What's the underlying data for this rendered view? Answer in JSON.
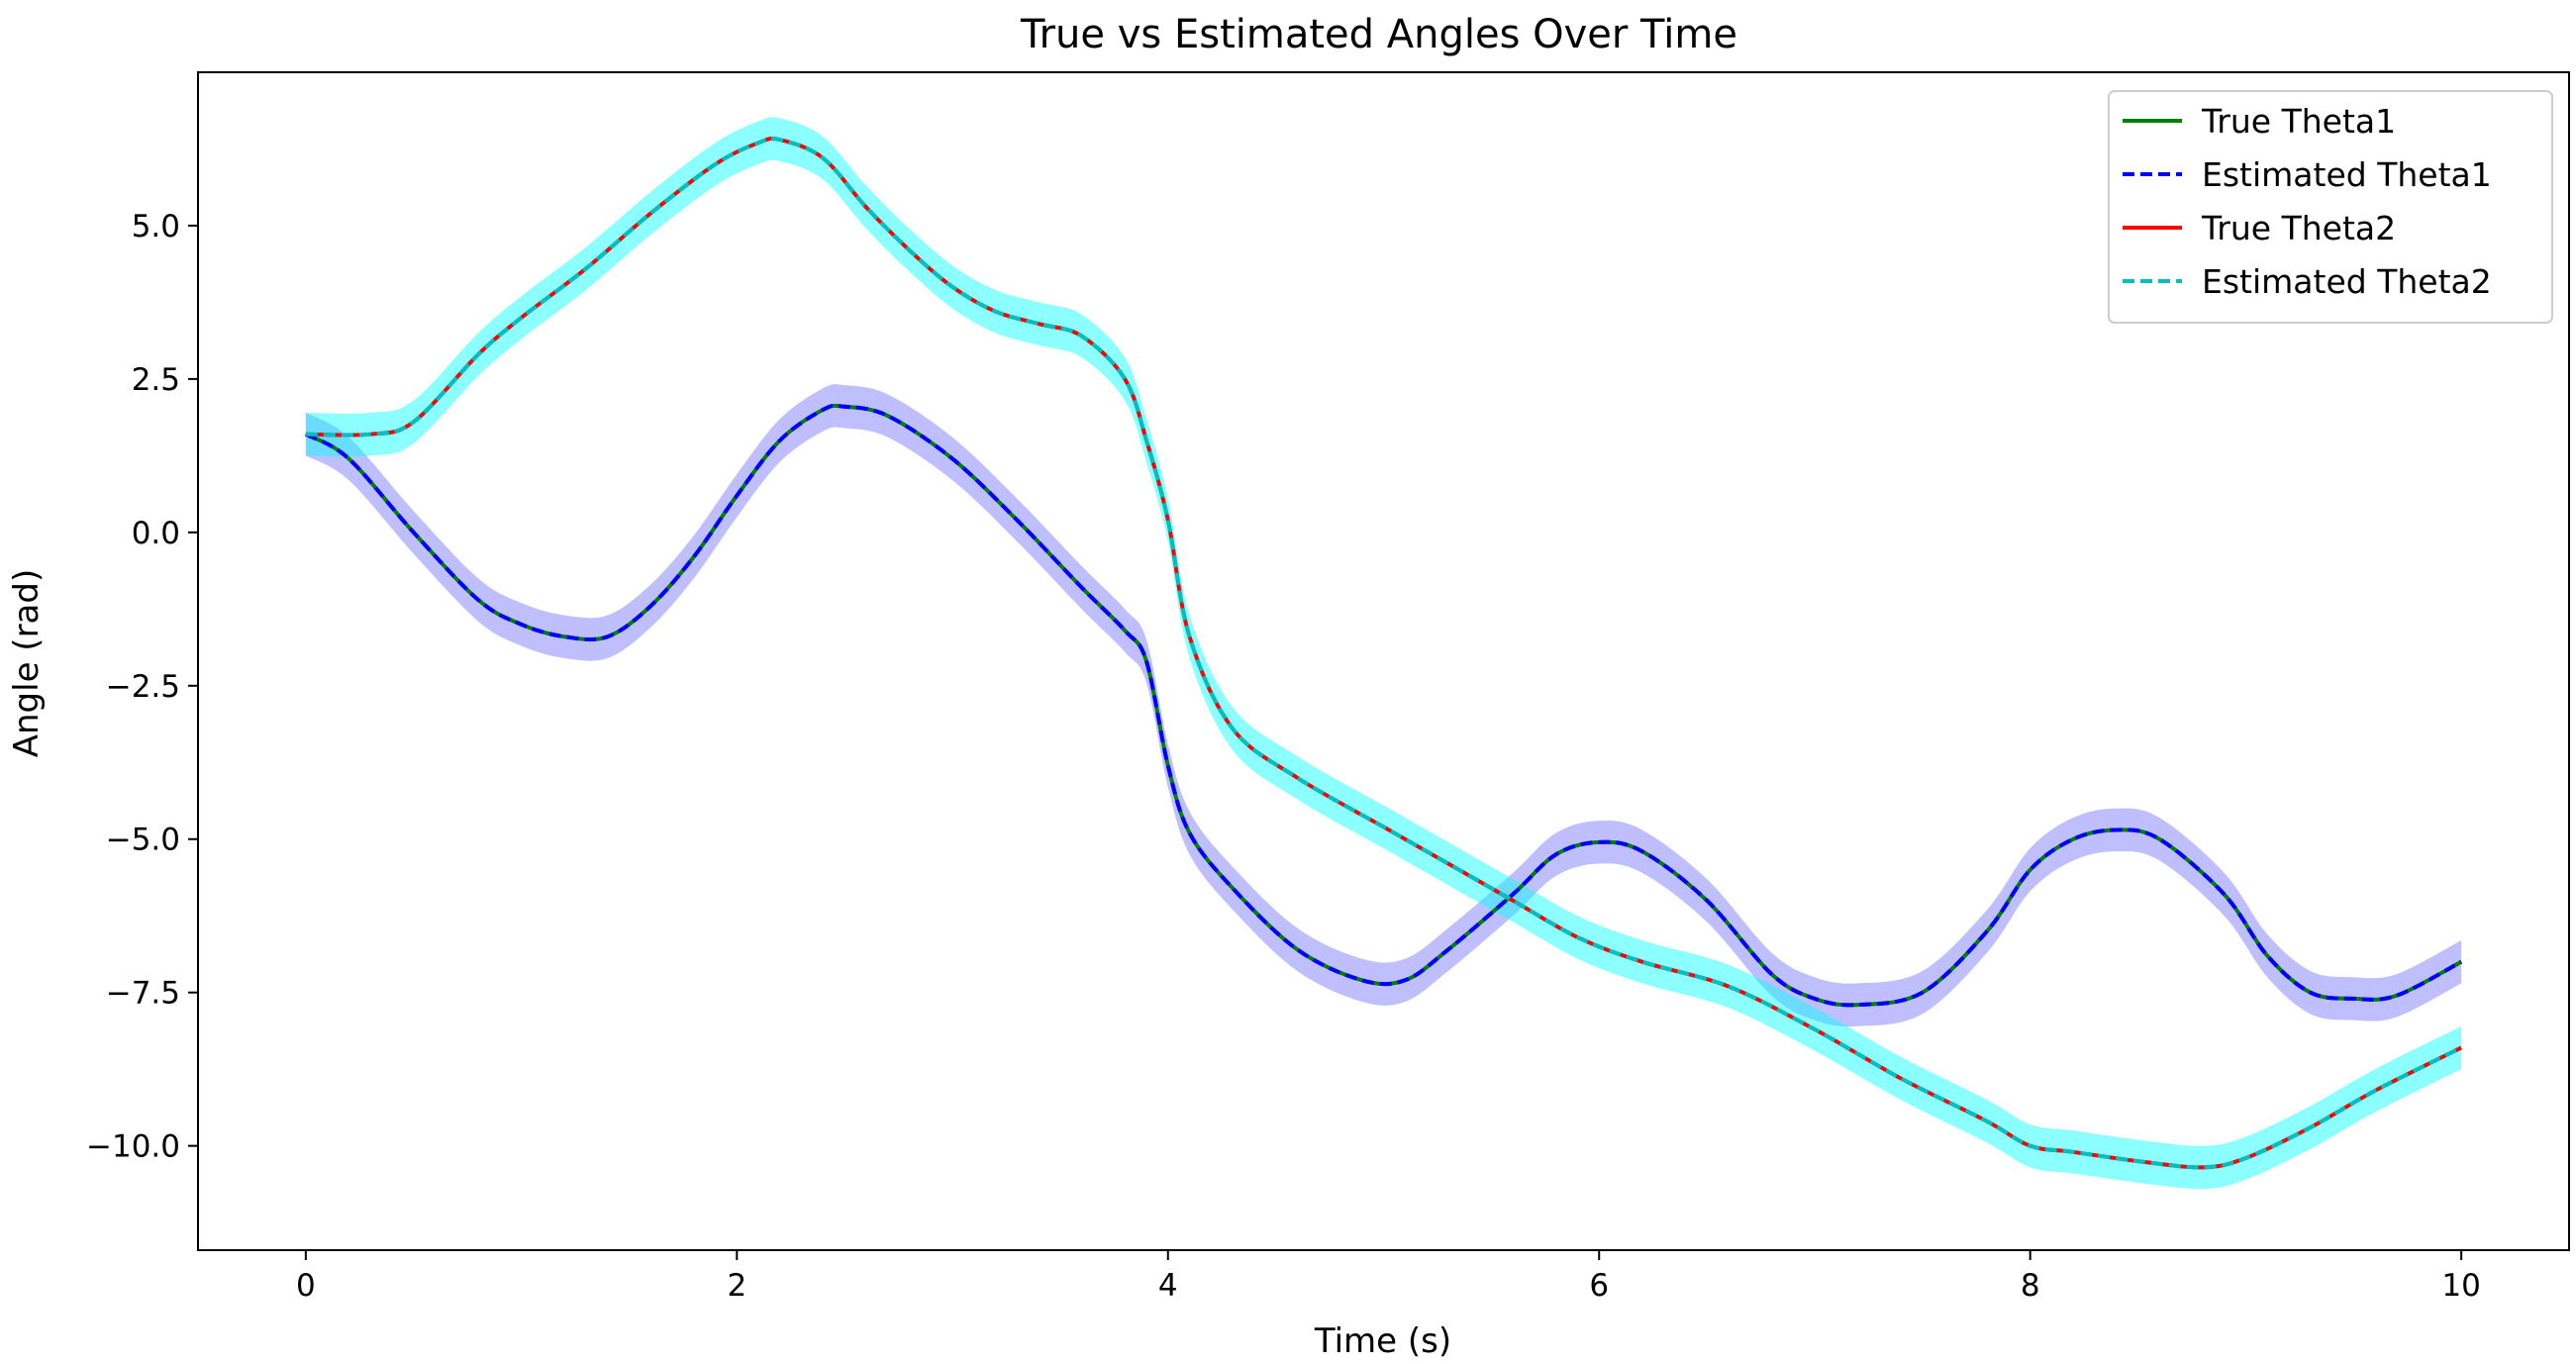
{
  "chart_data": {
    "type": "line",
    "title": "True vs Estimated Angles Over Time",
    "xlabel": "Time (s)",
    "ylabel": "Angle (rad)",
    "xlim": [
      -0.5,
      10.5
    ],
    "ylim": [
      -11.7,
      7.5
    ],
    "xticks": [
      0,
      2,
      4,
      6,
      8,
      10
    ],
    "xtick_labels": [
      "0",
      "2",
      "4",
      "6",
      "8",
      "10"
    ],
    "yticks": [
      5.0,
      2.5,
      0.0,
      -2.5,
      -5.0,
      -7.5,
      -10.0
    ],
    "ytick_labels": [
      "5.0",
      "2.5",
      "0.0",
      "−2.5",
      "−5.0",
      "−7.5",
      "−10.0"
    ],
    "grid": false,
    "legend_position": "top-right",
    "series": [
      {
        "name": "True Theta1",
        "color": "#008000",
        "style": "solid",
        "x": [
          0,
          0.2,
          0.5,
          0.8,
          1.0,
          1.2,
          1.4,
          1.6,
          1.8,
          2.0,
          2.2,
          2.4,
          2.5,
          2.7,
          3.0,
          3.3,
          3.6,
          3.8,
          3.9,
          4.0,
          4.1,
          4.3,
          4.6,
          4.9,
          5.1,
          5.3,
          5.6,
          5.8,
          6.0,
          6.2,
          6.5,
          6.8,
          7.0,
          7.2,
          7.5,
          7.8,
          8.0,
          8.2,
          8.4,
          8.6,
          8.9,
          9.1,
          9.3,
          9.5,
          9.7,
          10.0
        ],
        "y": [
          1.6,
          1.2,
          0.0,
          -1.1,
          -1.5,
          -1.7,
          -1.7,
          -1.2,
          -0.4,
          0.6,
          1.5,
          2.0,
          2.05,
          1.9,
          1.2,
          0.2,
          -0.9,
          -1.6,
          -2.1,
          -3.8,
          -4.9,
          -5.8,
          -6.8,
          -7.3,
          -7.3,
          -6.8,
          -5.9,
          -5.25,
          -5.05,
          -5.2,
          -6.0,
          -7.2,
          -7.6,
          -7.7,
          -7.5,
          -6.5,
          -5.5,
          -5.0,
          -4.85,
          -5.0,
          -5.9,
          -6.9,
          -7.5,
          -7.6,
          -7.55,
          -7.0
        ]
      },
      {
        "name": "Estimated Theta1",
        "color": "#0000ff",
        "style": "dashed",
        "x": [
          0,
          0.2,
          0.5,
          0.8,
          1.0,
          1.2,
          1.4,
          1.6,
          1.8,
          2.0,
          2.2,
          2.4,
          2.5,
          2.7,
          3.0,
          3.3,
          3.6,
          3.8,
          3.9,
          4.0,
          4.1,
          4.3,
          4.6,
          4.9,
          5.1,
          5.3,
          5.6,
          5.8,
          6.0,
          6.2,
          6.5,
          6.8,
          7.0,
          7.2,
          7.5,
          7.8,
          8.0,
          8.2,
          8.4,
          8.6,
          8.9,
          9.1,
          9.3,
          9.5,
          9.7,
          10.0
        ],
        "y": [
          1.6,
          1.2,
          0.0,
          -1.1,
          -1.5,
          -1.7,
          -1.7,
          -1.2,
          -0.4,
          0.6,
          1.5,
          2.0,
          2.05,
          1.9,
          1.2,
          0.2,
          -0.9,
          -1.6,
          -2.1,
          -3.8,
          -4.9,
          -5.8,
          -6.8,
          -7.3,
          -7.3,
          -6.8,
          -5.9,
          -5.25,
          -5.05,
          -5.2,
          -6.0,
          -7.2,
          -7.6,
          -7.7,
          -7.5,
          -6.5,
          -5.5,
          -5.0,
          -4.85,
          -5.0,
          -5.9,
          -6.9,
          -7.5,
          -7.6,
          -7.55,
          -7.0
        ]
      },
      {
        "name": "True Theta2",
        "color": "#ff0000",
        "style": "solid",
        "x": [
          0,
          0.3,
          0.5,
          0.8,
          1.0,
          1.3,
          1.6,
          1.9,
          2.1,
          2.2,
          2.4,
          2.6,
          2.8,
          3.0,
          3.2,
          3.4,
          3.6,
          3.8,
          3.9,
          4.0,
          4.1,
          4.3,
          4.6,
          5.0,
          5.3,
          5.6,
          5.9,
          6.2,
          6.6,
          7.0,
          7.4,
          7.8,
          8.0,
          8.2,
          8.5,
          8.8,
          9.0,
          9.3,
          9.6,
          10.0
        ],
        "y": [
          1.6,
          1.6,
          1.8,
          2.9,
          3.5,
          4.3,
          5.2,
          6.0,
          6.35,
          6.4,
          6.1,
          5.3,
          4.6,
          4.0,
          3.6,
          3.4,
          3.2,
          2.5,
          1.5,
          0.2,
          -1.7,
          -3.2,
          -4.0,
          -4.8,
          -5.4,
          -6.0,
          -6.6,
          -7.0,
          -7.4,
          -8.1,
          -8.9,
          -9.6,
          -10.0,
          -10.1,
          -10.25,
          -10.35,
          -10.2,
          -9.7,
          -9.1,
          -8.4
        ]
      },
      {
        "name": "Estimated Theta2",
        "color": "#00bfbf",
        "style": "dashed",
        "x": [
          0,
          0.3,
          0.5,
          0.8,
          1.0,
          1.3,
          1.6,
          1.9,
          2.1,
          2.2,
          2.4,
          2.6,
          2.8,
          3.0,
          3.2,
          3.4,
          3.6,
          3.8,
          3.9,
          4.0,
          4.1,
          4.3,
          4.6,
          5.0,
          5.3,
          5.6,
          5.9,
          6.2,
          6.6,
          7.0,
          7.4,
          7.8,
          8.0,
          8.2,
          8.5,
          8.8,
          9.0,
          9.3,
          9.6,
          10.0
        ],
        "y": [
          1.6,
          1.6,
          1.8,
          2.9,
          3.5,
          4.3,
          5.2,
          6.0,
          6.35,
          6.4,
          6.1,
          5.3,
          4.6,
          4.0,
          3.6,
          3.4,
          3.2,
          2.5,
          1.5,
          0.2,
          -1.7,
          -3.2,
          -4.0,
          -4.8,
          -5.4,
          -6.0,
          -6.6,
          -7.0,
          -7.4,
          -8.1,
          -8.9,
          -9.6,
          -10.0,
          -10.1,
          -10.25,
          -10.35,
          -10.2,
          -9.7,
          -9.1,
          -8.4
        ]
      }
    ],
    "bands": [
      {
        "series": "Estimated Theta1",
        "color": "#0000ff",
        "opacity": 0.25,
        "half_width": 0.35
      },
      {
        "series": "Estimated Theta2",
        "color": "#00ffff",
        "opacity": 0.45,
        "half_width": 0.35
      }
    ]
  }
}
